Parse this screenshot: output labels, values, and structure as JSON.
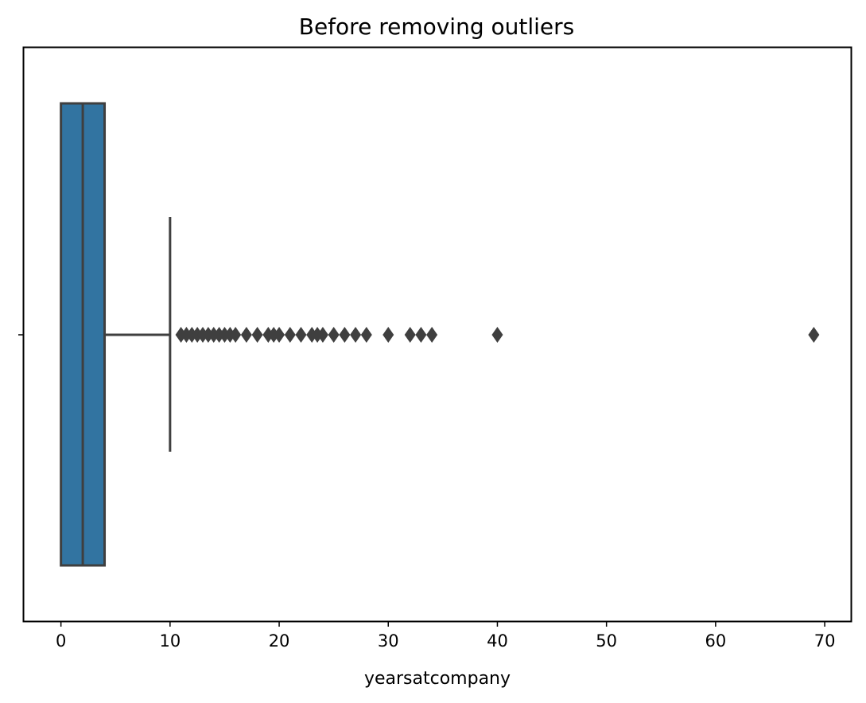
{
  "chart_data": {
    "type": "boxplot",
    "orientation": "horizontal",
    "title": "Before removing outliers",
    "xlabel": "yearsatcompany",
    "ylabel": "",
    "xlim": [
      -3.4,
      72.4
    ],
    "xticks": [
      0,
      10,
      20,
      30,
      40,
      50,
      60,
      70
    ],
    "xtick_labels": [
      "0",
      "10",
      "20",
      "30",
      "40",
      "50",
      "60",
      "70"
    ],
    "yticks": [
      ""
    ],
    "grid": false,
    "legend": "none",
    "box": {
      "min": 0,
      "q1": 0,
      "median": 2,
      "q3": 4,
      "whisker_low": 0,
      "whisker_high": 10,
      "color": "#3274a1",
      "edge_color": "#3f3f3f"
    },
    "outliers": [
      11,
      11.5,
      12,
      12.5,
      13,
      13.5,
      14,
      14.5,
      15,
      15.5,
      16,
      17,
      18,
      19,
      19.5,
      20,
      21,
      22,
      23,
      23.5,
      24,
      25,
      26,
      27,
      28,
      30,
      32,
      33,
      34,
      40,
      69
    ]
  }
}
